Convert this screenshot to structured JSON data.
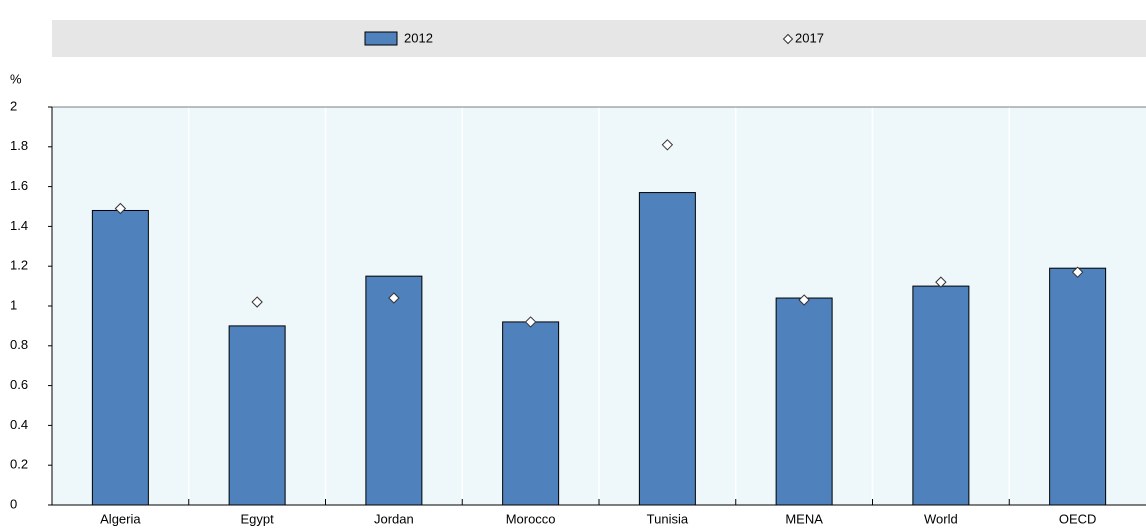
{
  "chart_data": {
    "type": "bar",
    "y_label": "%",
    "categories": [
      "Algeria",
      "Egypt",
      "Jordan",
      "Morocco",
      "Tunisia",
      "MENA",
      "World",
      "OECD"
    ],
    "series": [
      {
        "name": "2012",
        "color": "#4f81bd",
        "values": [
          1.48,
          0.9,
          1.15,
          0.92,
          1.57,
          1.04,
          1.1,
          1.19
        ]
      },
      {
        "name": "2017",
        "color": "#ffffff",
        "marker": "diamond",
        "values": [
          1.49,
          1.02,
          1.04,
          0.92,
          1.81,
          1.03,
          1.12,
          1.17
        ]
      }
    ],
    "ylim": [
      0,
      2
    ],
    "yticks": [
      0,
      0.2,
      0.4,
      0.6,
      0.8,
      1,
      1.2,
      1.4,
      1.6,
      1.8,
      2
    ]
  }
}
